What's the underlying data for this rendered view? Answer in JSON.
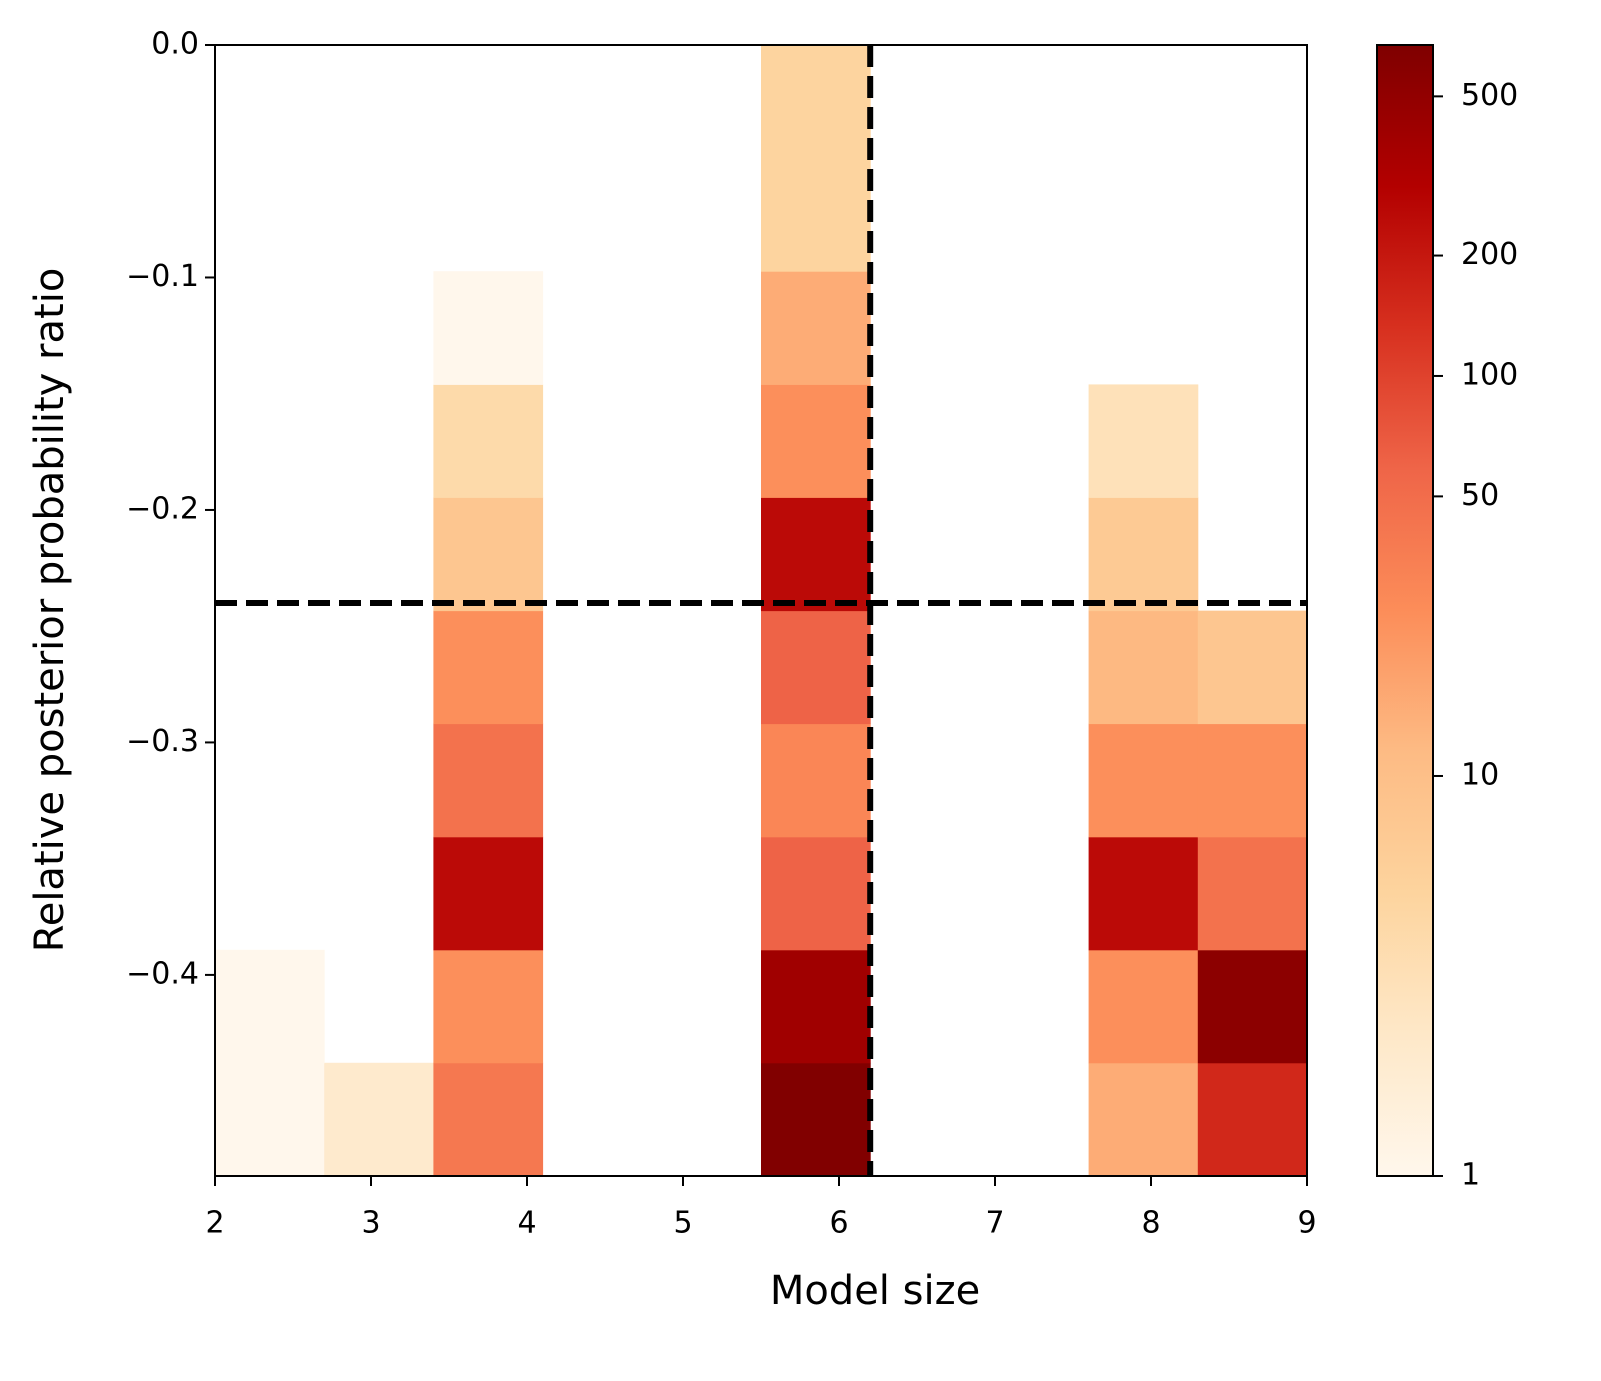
{
  "chart_data": {
    "type": "heatmap",
    "x_label": "Model size",
    "y_label": "Relative posterior probability ratio",
    "xlim": [
      2,
      9
    ],
    "ylim": [
      -0.4865,
      0
    ],
    "xticks": [
      2,
      3,
      4,
      5,
      6,
      7,
      8,
      9
    ],
    "yticks": [
      {
        "value": 0,
        "label": "0.0"
      },
      {
        "value": -0.1,
        "label": "−0.1"
      },
      {
        "value": -0.2,
        "label": "−0.2"
      },
      {
        "value": -0.3,
        "label": "−0.3"
      },
      {
        "value": -0.4,
        "label": "−0.4"
      }
    ],
    "x_edges": [
      2,
      2.7,
      3.4,
      4.1,
      4.8,
      5.5,
      6.2,
      6.9,
      7.6,
      8.3,
      9
    ],
    "y_edges": [
      -0.4865,
      -0.4378,
      -0.3892,
      -0.3406,
      -0.2919,
      -0.2433,
      -0.1946,
      -0.146,
      -0.0973,
      -0.0487,
      0
    ],
    "z": [
      [
        1,
        2,
        40,
        null,
        null,
        650,
        null,
        null,
        15,
        150
      ],
      [
        1,
        null,
        25,
        null,
        null,
        400,
        null,
        null,
        25,
        550
      ],
      [
        null,
        null,
        250,
        null,
        null,
        60,
        null,
        null,
        250,
        45
      ],
      [
        null,
        null,
        45,
        null,
        null,
        30,
        null,
        null,
        25,
        25
      ],
      [
        null,
        null,
        25,
        null,
        null,
        60,
        null,
        null,
        12,
        8
      ],
      [
        null,
        null,
        8,
        null,
        null,
        250,
        null,
        null,
        7,
        null
      ],
      [
        null,
        null,
        4,
        null,
        null,
        25,
        null,
        null,
        3,
        null
      ],
      [
        null,
        null,
        1,
        null,
        null,
        15,
        null,
        null,
        null,
        null
      ],
      [
        null,
        null,
        null,
        null,
        null,
        5,
        null,
        null,
        null,
        null
      ],
      [
        null,
        null,
        null,
        null,
        null,
        5,
        null,
        null,
        null,
        null
      ]
    ],
    "colorscale": [
      "#fff7ec",
      "#fee8c8",
      "#fdd49e",
      "#fdbb84",
      "#fc8d59",
      "#ef6548",
      "#d7301f",
      "#b30000",
      "#7f0000"
    ],
    "color_log": true,
    "clim": [
      1,
      672
    ],
    "cticks": [
      1,
      10,
      50,
      100,
      200,
      500
    ],
    "vlines": [
      6.2
    ],
    "hlines": [
      -0.24
    ]
  }
}
